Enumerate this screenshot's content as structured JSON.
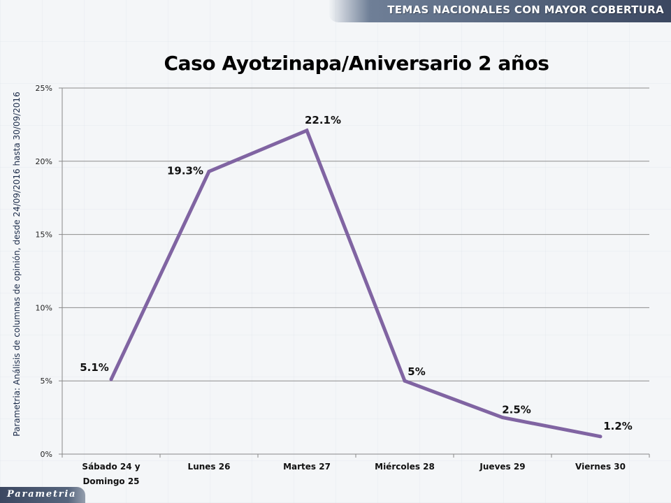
{
  "header": {
    "title": "TEMAS NACIONALES CON MAYOR COBERTURA"
  },
  "side_note": "Parametria: Análisis de columnas de opinión, desde 24/09/2016 hasta  30/09/2016",
  "footer": {
    "logo_text": "Parametria"
  },
  "chart_data": {
    "type": "line",
    "title": "Caso Ayotzinapa/Aniversario 2 años",
    "categories": [
      [
        "Sábado 24 y",
        "Domingo 25"
      ],
      [
        "Lunes 26"
      ],
      [
        "Martes 27"
      ],
      [
        "Miércoles 28"
      ],
      [
        "Jueves 29"
      ],
      [
        "Viernes 30"
      ]
    ],
    "values": [
      5.1,
      19.3,
      22.1,
      5.0,
      2.5,
      1.2
    ],
    "data_labels": [
      "5.1%",
      "19.3%",
      "22.1%",
      "5%",
      "2.5%",
      "1.2%"
    ],
    "y_ticks": [
      0,
      5,
      10,
      15,
      20,
      25
    ],
    "y_tick_labels": [
      "0%",
      "5%",
      "10%",
      "15%",
      "20%",
      "25%"
    ],
    "ylim": [
      0,
      25
    ],
    "grid": true,
    "legend": "none",
    "line_color": "#8064a2"
  }
}
